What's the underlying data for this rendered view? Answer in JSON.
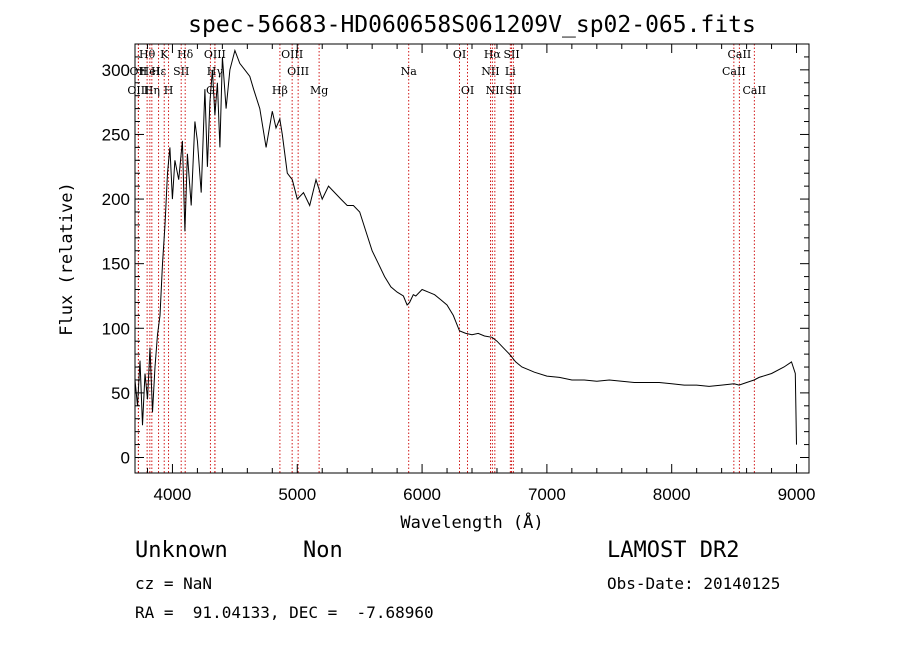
{
  "chart_data": {
    "type": "line",
    "title": "spec-56683-HD060658S061209V_sp02-065.fits",
    "xlabel": "Wavelength (Å)",
    "ylabel": "Flux (relative)",
    "xlim": [
      3700,
      9100
    ],
    "ylim": [
      -12,
      320
    ],
    "x_ticks": [
      4000,
      5000,
      6000,
      7000,
      8000,
      9000
    ],
    "y_ticks": [
      0,
      50,
      100,
      150,
      200,
      250,
      300
    ],
    "grid": false,
    "series": [
      {
        "name": "spectrum",
        "x": [
          3700,
          3720,
          3740,
          3760,
          3780,
          3800,
          3820,
          3840,
          3860,
          3880,
          3900,
          3920,
          3940,
          3960,
          3980,
          4000,
          4020,
          4050,
          4080,
          4100,
          4120,
          4150,
          4180,
          4200,
          4230,
          4260,
          4280,
          4300,
          4320,
          4340,
          4360,
          4380,
          4400,
          4430,
          4460,
          4500,
          4540,
          4580,
          4620,
          4650,
          4700,
          4750,
          4800,
          4830,
          4860,
          4880,
          4920,
          4960,
          5000,
          5050,
          5100,
          5150,
          5200,
          5250,
          5300,
          5350,
          5400,
          5450,
          5500,
          5550,
          5600,
          5650,
          5700,
          5750,
          5800,
          5850,
          5880,
          5900,
          5930,
          5950,
          6000,
          6050,
          6100,
          6150,
          6200,
          6250,
          6300,
          6350,
          6400,
          6450,
          6500,
          6560,
          6600,
          6650,
          6700,
          6750,
          6800,
          6850,
          6900,
          7000,
          7100,
          7200,
          7300,
          7400,
          7500,
          7600,
          7700,
          7800,
          7900,
          8000,
          8100,
          8200,
          8300,
          8400,
          8500,
          8540,
          8600,
          8660,
          8700,
          8800,
          8900,
          8960,
          8990,
          9000
        ],
        "y": [
          60,
          40,
          75,
          25,
          65,
          45,
          85,
          35,
          70,
          95,
          110,
          150,
          180,
          220,
          240,
          200,
          230,
          215,
          245,
          175,
          235,
          195,
          260,
          245,
          205,
          285,
          225,
          275,
          300,
          265,
          290,
          240,
          310,
          270,
          300,
          315,
          305,
          300,
          295,
          285,
          270,
          240,
          268,
          255,
          262,
          250,
          220,
          215,
          200,
          205,
          195,
          215,
          200,
          210,
          205,
          200,
          195,
          195,
          190,
          175,
          160,
          150,
          140,
          132,
          128,
          125,
          118,
          120,
          126,
          125,
          130,
          128,
          126,
          122,
          118,
          110,
          98,
          96,
          95,
          96,
          94,
          93,
          90,
          85,
          80,
          74,
          70,
          68,
          66,
          63,
          62,
          60,
          60,
          59,
          60,
          59,
          58,
          58,
          58,
          57,
          56,
          56,
          55,
          56,
          57,
          56,
          58,
          60,
          62,
          65,
          70,
          74,
          65,
          10
        ]
      }
    ],
    "spectral_lines": [
      {
        "label": "Hθ",
        "x": 3797,
        "row": 0
      },
      {
        "label": "OII",
        "x": 3727,
        "row": 1
      },
      {
        "label": "OIII",
        "x": 3727,
        "row": 2
      },
      {
        "label": "HeI",
        "x": 3819,
        "row": 1
      },
      {
        "label": "Hη",
        "x": 3835,
        "row": 2
      },
      {
        "label": "K",
        "x": 3934,
        "row": 0
      },
      {
        "label": "Hε",
        "x": 3889,
        "row": 1
      },
      {
        "label": "H",
        "x": 3969,
        "row": 2
      },
      {
        "label": "SII",
        "x": 4070,
        "row": 1
      },
      {
        "label": "Hδ",
        "x": 4102,
        "row": 0
      },
      {
        "label": "OIII",
        "x": 4340,
        "row": 0
      },
      {
        "label": "Hγ",
        "x": 4340,
        "row": 1
      },
      {
        "label": "G",
        "x": 4304,
        "row": 2
      },
      {
        "label": "Hβ",
        "x": 4861,
        "row": 2
      },
      {
        "label": "OIII",
        "x": 4959,
        "row": 0
      },
      {
        "label": "OIII",
        "x": 5007,
        "row": 1
      },
      {
        "label": "Mg",
        "x": 5175,
        "row": 2
      },
      {
        "label": "Na",
        "x": 5893,
        "row": 1
      },
      {
        "label": "OI",
        "x": 6300,
        "row": 0
      },
      {
        "label": "OI",
        "x": 6364,
        "row": 2
      },
      {
        "label": "Hα",
        "x": 6563,
        "row": 0
      },
      {
        "label": "NII",
        "x": 6548,
        "row": 1
      },
      {
        "label": "NII",
        "x": 6583,
        "row": 2
      },
      {
        "label": "SII",
        "x": 6717,
        "row": 0
      },
      {
        "label": "Li",
        "x": 6707,
        "row": 1
      },
      {
        "label": "SII",
        "x": 6731,
        "row": 2
      },
      {
        "label": "CaII",
        "x": 8542,
        "row": 0
      },
      {
        "label": "CaII",
        "x": 8498,
        "row": 1
      },
      {
        "label": "CaII",
        "x": 8662,
        "row": 2
      }
    ]
  },
  "info": {
    "object_type": "Unknown",
    "class": "Non",
    "cz": "cz = NaN",
    "radec": "RA =  91.04133, DEC =  -7.68960",
    "survey": "LAMOST DR2",
    "obs_date": "Obs-Date: 20140125"
  },
  "colors": {
    "line_marker": "#cc0000",
    "spectrum": "#000000"
  }
}
